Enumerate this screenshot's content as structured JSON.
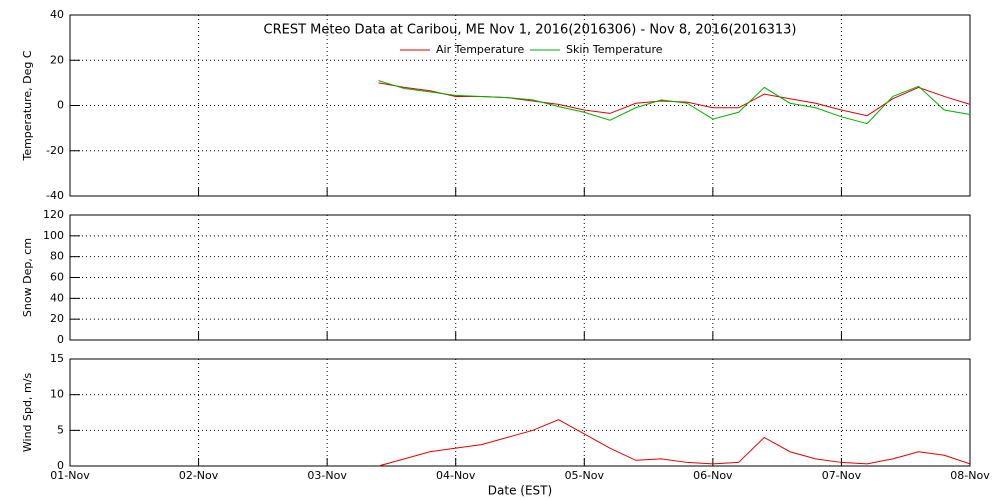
{
  "chart_data": [
    {
      "type": "line",
      "title": "CREST Meteo Data at Caribou, ME   Nov  1, 2016(2016306) - Nov  8, 2016(2016313)",
      "ylabel": "Temperature, Deg C",
      "xlim": [
        0,
        7
      ],
      "ylim": [
        -40,
        40
      ],
      "yticks": [
        -40,
        -20,
        0,
        20,
        40
      ],
      "grid": true,
      "x": [
        2.4,
        2.6,
        2.8,
        3.0,
        3.2,
        3.4,
        3.6,
        3.8,
        4.0,
        4.2,
        4.4,
        4.6,
        4.8,
        5.0,
        5.2,
        5.4,
        5.6,
        5.8,
        6.0,
        6.2,
        6.4,
        6.6,
        6.8,
        7.0
      ],
      "series": [
        {
          "name": "Air Temperature",
          "color": "#e00000",
          "values": [
            10,
            8,
            6.5,
            4,
            4,
            3.5,
            2,
            0.5,
            -2,
            -3.5,
            1,
            2,
            1.5,
            -1,
            -1,
            5,
            3,
            1,
            -2,
            -4.5,
            3,
            8,
            4,
            0.5
          ]
        },
        {
          "name": "Skin Temperature",
          "color": "#00b000",
          "values": [
            11,
            7.5,
            6,
            4.5,
            4,
            3.5,
            2.5,
            -0.5,
            -3,
            -6.5,
            -1,
            2.5,
            1,
            -6,
            -3,
            8,
            1,
            -1,
            -5,
            -8,
            4,
            8.5,
            -2,
            -4
          ]
        }
      ]
    },
    {
      "type": "line",
      "ylabel": "Snow Dep, cm",
      "xlim": [
        0,
        7
      ],
      "ylim": [
        0,
        120
      ],
      "yticks": [
        0,
        20,
        40,
        60,
        80,
        100,
        120
      ],
      "grid": true,
      "series": []
    },
    {
      "type": "line",
      "ylabel": "Wind Spd, m/s",
      "xlabel": "Date (EST)",
      "xlim": [
        0,
        7
      ],
      "ylim": [
        0,
        15
      ],
      "yticks": [
        0,
        5,
        10,
        15
      ],
      "grid": true,
      "xticks": [
        {
          "value": 0,
          "label": "01-Nov"
        },
        {
          "value": 1,
          "label": "02-Nov"
        },
        {
          "value": 2,
          "label": "03-Nov"
        },
        {
          "value": 3,
          "label": "04-Nov"
        },
        {
          "value": 4,
          "label": "05-Nov"
        },
        {
          "value": 5,
          "label": "06-Nov"
        },
        {
          "value": 6,
          "label": "07-Nov"
        },
        {
          "value": 7,
          "label": "08-Nov"
        }
      ],
      "x": [
        2.4,
        2.6,
        2.8,
        3.0,
        3.2,
        3.4,
        3.6,
        3.8,
        4.0,
        4.2,
        4.4,
        4.6,
        4.8,
        5.0,
        5.2,
        5.4,
        5.6,
        5.8,
        6.0,
        6.2,
        6.4,
        6.6,
        6.8,
        7.0
      ],
      "series": [
        {
          "color": "#e00000",
          "values": [
            0,
            1,
            2,
            2.5,
            3,
            4,
            5,
            6.5,
            4.5,
            2.5,
            0.8,
            1,
            0.5,
            0.3,
            0.5,
            4,
            2,
            1,
            0.5,
            0.3,
            1,
            2,
            1.5,
            0.3
          ]
        }
      ]
    }
  ]
}
